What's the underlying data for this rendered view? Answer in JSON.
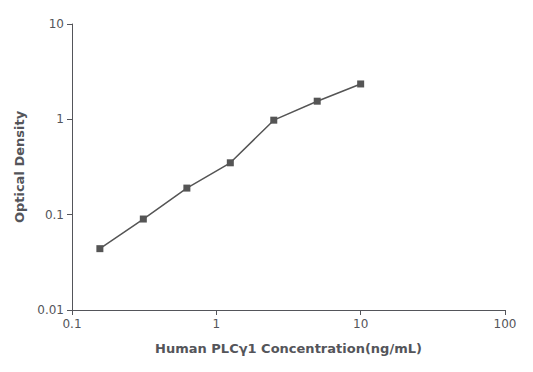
{
  "chart_data": {
    "type": "line",
    "xlabel": "Human PLCγ1 Concentration(ng/mL)",
    "ylabel": "Optical Density",
    "x": [
      0.156,
      0.312,
      0.625,
      1.25,
      2.5,
      5.0,
      10.0
    ],
    "values": [
      0.044,
      0.09,
      0.19,
      0.35,
      0.98,
      1.55,
      2.35
    ],
    "color": "#555555",
    "marker": "square",
    "log": true,
    "xlim": [
      0.1,
      100
    ],
    "ylim": [
      0.01,
      10
    ],
    "xticks": [
      0.1,
      1,
      10,
      100
    ],
    "yticks": [
      0.01,
      0.1,
      1,
      10
    ],
    "grid": false
  }
}
